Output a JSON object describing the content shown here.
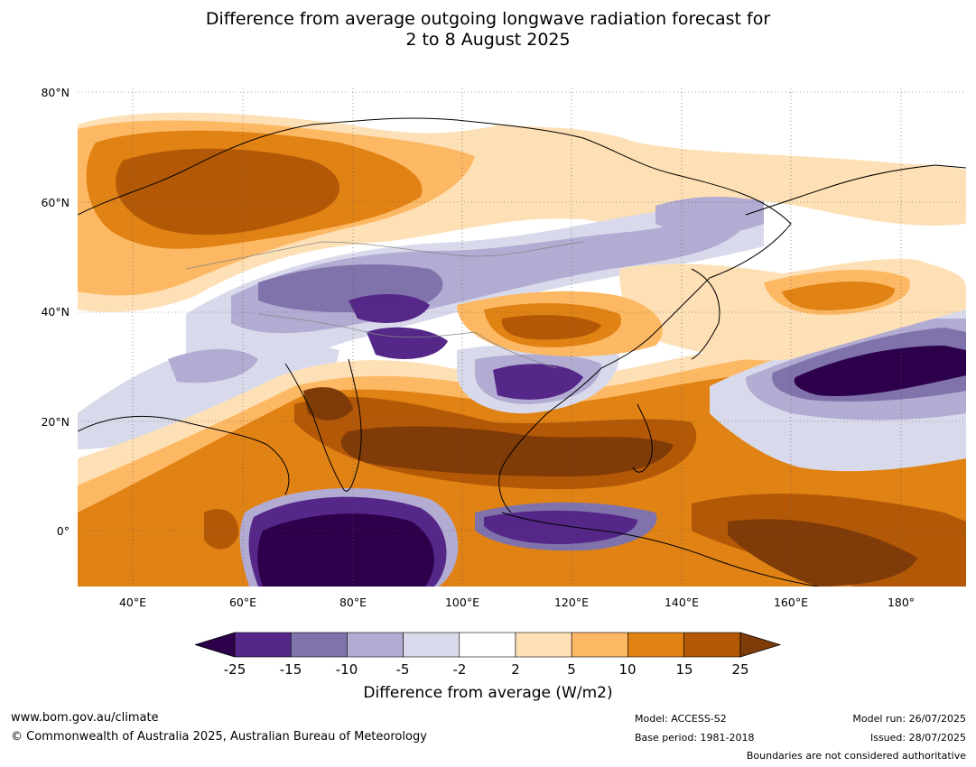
{
  "title": {
    "line1": "Difference from average outgoing longwave radiation forecast for",
    "line2": "2 to 8 August 2025"
  },
  "map": {
    "lat_labels": [
      "80°N",
      "60°N",
      "40°N",
      "20°N",
      "0°"
    ],
    "lon_labels": [
      "40°E",
      "60°E",
      "80°E",
      "100°E",
      "120°E",
      "140°E",
      "160°E",
      "180°"
    ],
    "colors": {
      "le_m25": "#2d004b",
      "m25_m15": "#542788",
      "m15_m10": "#8073ac",
      "m10_m5": "#b2abd2",
      "m5_m2": "#d8daeb",
      "neutral": "#ffffff",
      "p2_p5": "#fee0b6",
      "p5_p10": "#fdb863",
      "p10_p15": "#e08214",
      "p15_p25": "#b35806",
      "ge_p25": "#7f3b08",
      "ocean": "#ffffff",
      "coast": "#000000",
      "border": "#888888"
    }
  },
  "colorbar": {
    "ticks": [
      "-25",
      "-15",
      "-10",
      "-5",
      "-2",
      "2",
      "5",
      "10",
      "15",
      "25"
    ],
    "label": "Difference from average (W/m2)"
  },
  "footer": {
    "url": "www.bom.gov.au/climate",
    "copyright": "© Commonwealth of Australia 2025, Australian Bureau of Meteorology",
    "model": "Model: ACCESS-S2",
    "base_period": "Base period: 1981-2018",
    "model_run": "Model run: 26/07/2025",
    "issued": "Issued: 28/07/2025",
    "disclaimer": "Boundaries are not considered authoritative"
  }
}
